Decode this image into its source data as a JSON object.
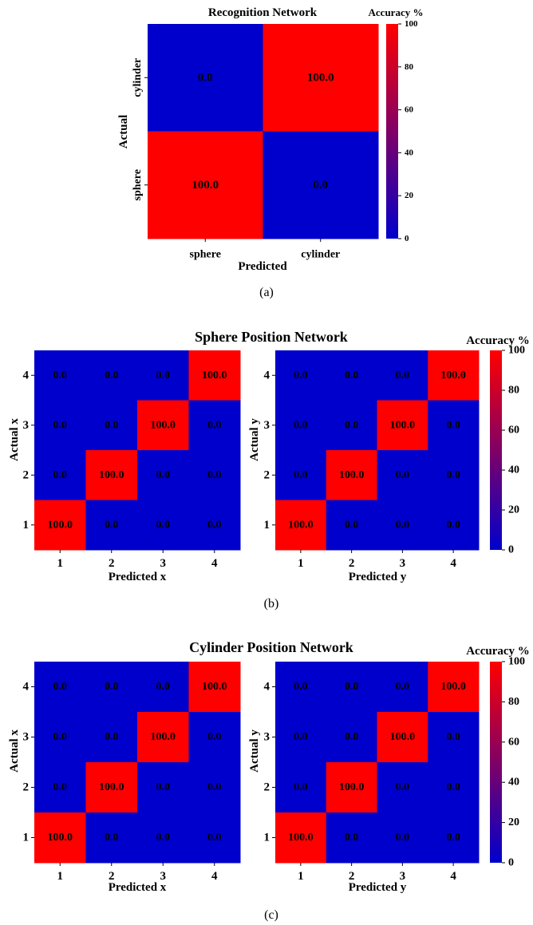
{
  "figure": {
    "panel_labels": [
      "(a)",
      "(b)",
      "(c)"
    ],
    "colorbar": {
      "title": "Accuracy %",
      "ticks": [
        "0",
        "20",
        "40",
        "60",
        "80",
        "100"
      ],
      "range": [
        0,
        100
      ],
      "colormap": [
        "#0000cc",
        "#ff0000"
      ]
    }
  },
  "chart_data": [
    {
      "type": "heatmap",
      "title": "Recognition Network",
      "xlabel": "Predicted",
      "ylabel": "Actual",
      "x_categories": [
        "sphere",
        "cylinder"
      ],
      "y_categories": [
        "cylinder",
        "sphere"
      ],
      "values": [
        [
          0.0,
          100.0
        ],
        [
          100.0,
          0.0
        ]
      ],
      "cell_labels": [
        [
          "0.0",
          "100.0"
        ],
        [
          "100.0",
          "0.0"
        ]
      ],
      "colorbar_label": "Accuracy %",
      "zlim": [
        0,
        100
      ]
    },
    {
      "type": "heatmap",
      "group_title": "Sphere Position Network",
      "xlabel": "Predicted x",
      "ylabel": "Actual x",
      "x_categories": [
        "1",
        "2",
        "3",
        "4"
      ],
      "y_categories": [
        "4",
        "3",
        "2",
        "1"
      ],
      "values": [
        [
          0,
          0,
          0,
          100
        ],
        [
          0,
          0,
          100,
          0
        ],
        [
          0,
          100,
          0,
          0
        ],
        [
          100,
          0,
          0,
          0
        ]
      ],
      "cell_labels": [
        [
          "0.0",
          "0.0",
          "0.0",
          "100.0"
        ],
        [
          "0.0",
          "0.0",
          "100.0",
          "0.0"
        ],
        [
          "0.0",
          "100.0",
          "0.0",
          "0.0"
        ],
        [
          "100.0",
          "0.0",
          "0.0",
          "0.0"
        ]
      ],
      "zlim": [
        0,
        100
      ]
    },
    {
      "type": "heatmap",
      "group_title": "Sphere Position Network",
      "xlabel": "Predicted y",
      "ylabel": "Actual y",
      "x_categories": [
        "1",
        "2",
        "3",
        "4"
      ],
      "y_categories": [
        "4",
        "3",
        "2",
        "1"
      ],
      "values": [
        [
          0,
          0,
          0,
          100
        ],
        [
          0,
          0,
          100,
          0
        ],
        [
          0,
          100,
          0,
          0
        ],
        [
          100,
          0,
          0,
          0
        ]
      ],
      "cell_labels": [
        [
          "0.0",
          "0.0",
          "0.0",
          "100.0"
        ],
        [
          "0.0",
          "0.0",
          "100.0",
          "0.0"
        ],
        [
          "0.0",
          "100.0",
          "0.0",
          "0.0"
        ],
        [
          "100.0",
          "0.0",
          "0.0",
          "0.0"
        ]
      ],
      "colorbar_label": "Accuracy %",
      "zlim": [
        0,
        100
      ]
    },
    {
      "type": "heatmap",
      "group_title": "Cylinder Position Network",
      "xlabel": "Predicted x",
      "ylabel": "Actual x",
      "x_categories": [
        "1",
        "2",
        "3",
        "4"
      ],
      "y_categories": [
        "4",
        "3",
        "2",
        "1"
      ],
      "values": [
        [
          0,
          0,
          0,
          100
        ],
        [
          0,
          0,
          100,
          0
        ],
        [
          0,
          100,
          0,
          0
        ],
        [
          100,
          0,
          0,
          0
        ]
      ],
      "cell_labels": [
        [
          "0.0",
          "0.0",
          "0.0",
          "100.0"
        ],
        [
          "0.0",
          "0.0",
          "100.0",
          "0.0"
        ],
        [
          "0.0",
          "100.0",
          "0.0",
          "0.0"
        ],
        [
          "100.0",
          "0.0",
          "0.0",
          "0.0"
        ]
      ],
      "zlim": [
        0,
        100
      ]
    },
    {
      "type": "heatmap",
      "group_title": "Cylinder Position Network",
      "xlabel": "Predicted y",
      "ylabel": "Actual y",
      "x_categories": [
        "1",
        "2",
        "3",
        "4"
      ],
      "y_categories": [
        "4",
        "3",
        "2",
        "1"
      ],
      "values": [
        [
          0,
          0,
          0,
          100
        ],
        [
          0,
          0,
          100,
          0
        ],
        [
          0,
          100,
          0,
          0
        ],
        [
          100,
          0,
          0,
          0
        ]
      ],
      "cell_labels": [
        [
          "0.0",
          "0.0",
          "0.0",
          "100.0"
        ],
        [
          "0.0",
          "0.0",
          "100.0",
          "0.0"
        ],
        [
          "0.0",
          "100.0",
          "0.0",
          "0.0"
        ],
        [
          "100.0",
          "0.0",
          "0.0",
          "0.0"
        ]
      ],
      "colorbar_label": "Accuracy %",
      "zlim": [
        0,
        100
      ]
    }
  ]
}
